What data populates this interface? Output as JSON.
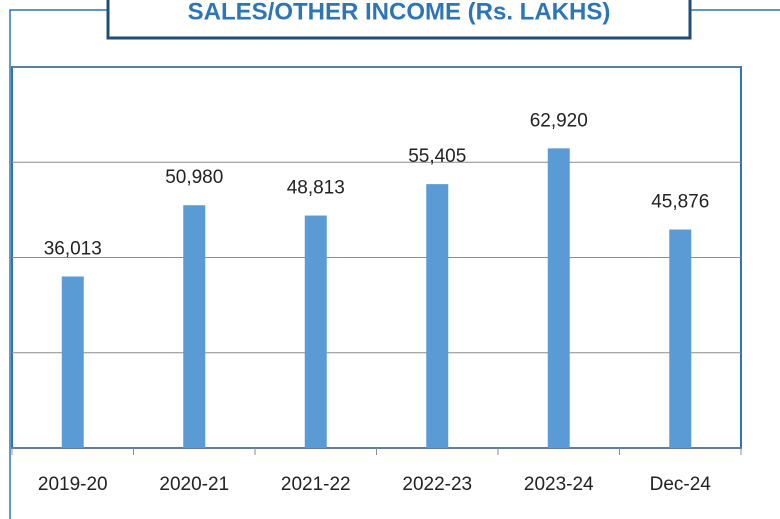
{
  "chart_data": {
    "type": "bar",
    "title": "SALES/OTHER INCOME (Rs. LAKHS)",
    "categories": [
      "2019-20",
      "2020-21",
      "2021-22",
      "2022-23",
      "2023-24",
      "Dec-24"
    ],
    "values": [
      36013,
      50980,
      48813,
      55405,
      62920,
      45876
    ],
    "value_labels": [
      "36,013",
      "50,980",
      "48,813",
      "55,405",
      "62,920",
      "45,876"
    ],
    "color": "#5b9bd5",
    "ylim": [
      0,
      80000
    ],
    "yticks": [
      0,
      20000,
      40000,
      60000,
      80000
    ],
    "grid": true
  }
}
